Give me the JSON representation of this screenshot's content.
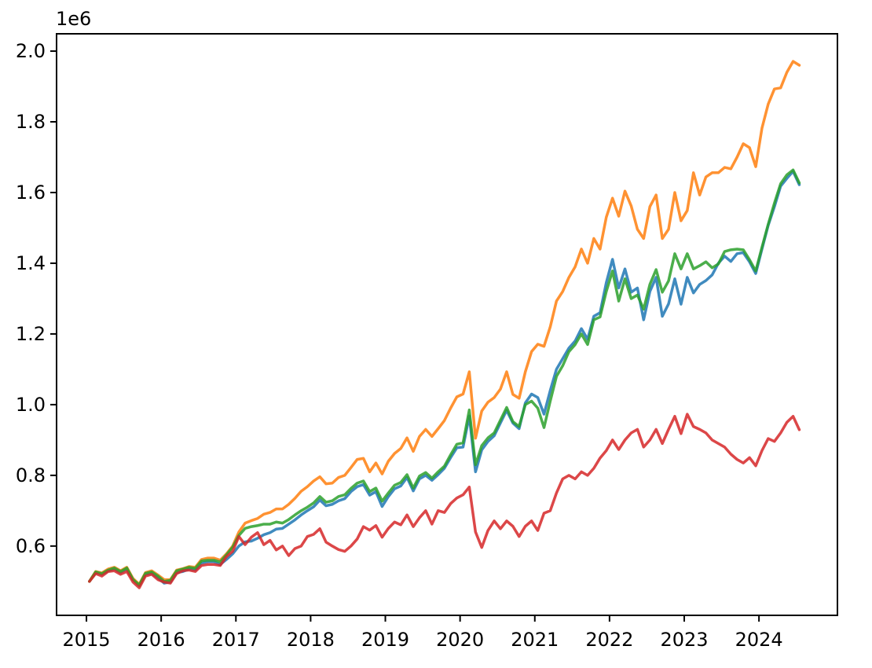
{
  "figure": {
    "background": "#ffffff"
  },
  "chart_data": {
    "type": "line",
    "title": "",
    "xlabel": "",
    "ylabel": "",
    "grid": false,
    "legend": null,
    "values_unit_multiplier": 1000000,
    "x_start_year": 2015.04,
    "x_step_years": 0.0833333,
    "x_axis": {
      "ticks": [
        2015,
        2016,
        2017,
        2018,
        2019,
        2020,
        2021,
        2022,
        2023,
        2024
      ],
      "tick_labels": [
        "2015",
        "2016",
        "2017",
        "2018",
        "2019",
        "2020",
        "2021",
        "2022",
        "2023",
        "2024"
      ],
      "lim": [
        2014.6,
        2025.05
      ]
    },
    "y_axis": {
      "ticks": [
        0.6,
        0.8,
        1.0,
        1.2,
        1.4,
        1.6,
        1.8,
        2.0
      ],
      "tick_labels": [
        "0.6",
        "0.8",
        "1.0",
        "1.2",
        "1.4",
        "1.6",
        "1.8",
        "2.0"
      ],
      "offset_text": "1e6",
      "lim": [
        0.404,
        2.049
      ]
    },
    "stroke_opacity": 0.85,
    "line_width": 3.5,
    "series": [
      {
        "name": "blue",
        "color": "#1f77b4",
        "values": [
          0.5,
          0.525,
          0.52,
          0.53,
          0.535,
          0.525,
          0.535,
          0.505,
          0.488,
          0.52,
          0.523,
          0.51,
          0.495,
          0.498,
          0.525,
          0.528,
          0.535,
          0.532,
          0.552,
          0.556,
          0.556,
          0.548,
          0.562,
          0.578,
          0.6,
          0.612,
          0.614,
          0.622,
          0.632,
          0.638,
          0.648,
          0.65,
          0.662,
          0.674,
          0.688,
          0.7,
          0.711,
          0.73,
          0.714,
          0.718,
          0.728,
          0.734,
          0.754,
          0.768,
          0.774,
          0.744,
          0.754,
          0.712,
          0.74,
          0.762,
          0.77,
          0.794,
          0.756,
          0.79,
          0.8,
          0.786,
          0.802,
          0.82,
          0.85,
          0.878,
          0.88,
          0.968,
          0.81,
          0.872,
          0.896,
          0.912,
          0.948,
          0.984,
          0.948,
          0.932,
          1.005,
          1.03,
          1.02,
          0.973,
          1.04,
          1.1,
          1.13,
          1.16,
          1.18,
          1.215,
          1.185,
          1.25,
          1.26,
          1.345,
          1.411,
          1.33,
          1.384,
          1.318,
          1.33,
          1.24,
          1.32,
          1.36,
          1.25,
          1.285,
          1.356,
          1.284,
          1.36,
          1.316,
          1.34,
          1.351,
          1.367,
          1.4,
          1.42,
          1.405,
          1.427,
          1.43,
          1.404,
          1.371,
          1.44,
          1.507,
          1.56,
          1.618,
          1.64,
          1.66,
          1.622
        ]
      },
      {
        "name": "orange",
        "color": "#ff7f0e",
        "values": [
          0.5,
          0.528,
          0.524,
          0.535,
          0.54,
          0.53,
          0.54,
          0.508,
          0.492,
          0.525,
          0.53,
          0.518,
          0.505,
          0.505,
          0.532,
          0.536,
          0.542,
          0.54,
          0.562,
          0.566,
          0.566,
          0.56,
          0.578,
          0.6,
          0.64,
          0.665,
          0.672,
          0.678,
          0.69,
          0.695,
          0.705,
          0.705,
          0.718,
          0.735,
          0.755,
          0.768,
          0.784,
          0.796,
          0.776,
          0.778,
          0.794,
          0.8,
          0.822,
          0.845,
          0.848,
          0.81,
          0.835,
          0.804,
          0.84,
          0.862,
          0.876,
          0.906,
          0.868,
          0.91,
          0.93,
          0.91,
          0.932,
          0.955,
          0.99,
          1.022,
          1.03,
          1.093,
          0.905,
          0.982,
          1.007,
          1.02,
          1.044,
          1.093,
          1.029,
          1.018,
          1.093,
          1.15,
          1.171,
          1.165,
          1.22,
          1.293,
          1.32,
          1.36,
          1.39,
          1.44,
          1.4,
          1.47,
          1.44,
          1.53,
          1.584,
          1.533,
          1.604,
          1.562,
          1.496,
          1.47,
          1.56,
          1.593,
          1.47,
          1.496,
          1.6,
          1.52,
          1.549,
          1.656,
          1.593,
          1.644,
          1.656,
          1.656,
          1.671,
          1.667,
          1.7,
          1.738,
          1.727,
          1.673,
          1.782,
          1.85,
          1.893,
          1.896,
          1.94,
          1.971,
          1.96
        ]
      },
      {
        "name": "green",
        "color": "#2ca02c",
        "values": [
          0.5,
          0.527,
          0.522,
          0.532,
          0.538,
          0.528,
          0.538,
          0.505,
          0.49,
          0.523,
          0.527,
          0.515,
          0.5,
          0.503,
          0.53,
          0.535,
          0.54,
          0.537,
          0.558,
          0.56,
          0.56,
          0.555,
          0.575,
          0.597,
          0.63,
          0.65,
          0.655,
          0.658,
          0.662,
          0.662,
          0.668,
          0.665,
          0.675,
          0.688,
          0.7,
          0.71,
          0.722,
          0.74,
          0.724,
          0.728,
          0.74,
          0.745,
          0.763,
          0.778,
          0.784,
          0.754,
          0.764,
          0.727,
          0.75,
          0.772,
          0.78,
          0.802,
          0.764,
          0.798,
          0.808,
          0.792,
          0.81,
          0.826,
          0.858,
          0.888,
          0.892,
          0.985,
          0.83,
          0.884,
          0.906,
          0.92,
          0.956,
          0.992,
          0.952,
          0.938,
          1.0,
          1.01,
          0.99,
          0.935,
          1.01,
          1.08,
          1.11,
          1.15,
          1.17,
          1.2,
          1.17,
          1.24,
          1.248,
          1.32,
          1.378,
          1.293,
          1.356,
          1.3,
          1.31,
          1.27,
          1.34,
          1.382,
          1.318,
          1.35,
          1.427,
          1.384,
          1.427,
          1.384,
          1.393,
          1.404,
          1.387,
          1.398,
          1.433,
          1.438,
          1.44,
          1.438,
          1.41,
          1.378,
          1.445,
          1.51,
          1.57,
          1.625,
          1.65,
          1.664,
          1.627
        ]
      },
      {
        "name": "red",
        "color": "#d62728",
        "values": [
          0.5,
          0.522,
          0.515,
          0.528,
          0.53,
          0.52,
          0.528,
          0.498,
          0.482,
          0.515,
          0.52,
          0.505,
          0.498,
          0.495,
          0.522,
          0.53,
          0.532,
          0.528,
          0.545,
          0.548,
          0.548,
          0.545,
          0.57,
          0.585,
          0.627,
          0.604,
          0.625,
          0.638,
          0.604,
          0.616,
          0.589,
          0.6,
          0.573,
          0.593,
          0.6,
          0.627,
          0.633,
          0.649,
          0.611,
          0.6,
          0.59,
          0.585,
          0.6,
          0.62,
          0.655,
          0.645,
          0.658,
          0.625,
          0.65,
          0.668,
          0.66,
          0.688,
          0.655,
          0.68,
          0.7,
          0.662,
          0.7,
          0.695,
          0.72,
          0.736,
          0.745,
          0.767,
          0.64,
          0.596,
          0.644,
          0.671,
          0.649,
          0.671,
          0.656,
          0.627,
          0.656,
          0.671,
          0.644,
          0.693,
          0.7,
          0.75,
          0.79,
          0.8,
          0.79,
          0.81,
          0.8,
          0.82,
          0.849,
          0.87,
          0.9,
          0.873,
          0.9,
          0.92,
          0.93,
          0.88,
          0.9,
          0.93,
          0.89,
          0.93,
          0.967,
          0.918,
          0.973,
          0.938,
          0.93,
          0.92,
          0.9,
          0.89,
          0.88,
          0.86,
          0.845,
          0.835,
          0.85,
          0.827,
          0.87,
          0.904,
          0.896,
          0.92,
          0.95,
          0.967,
          0.929
        ]
      }
    ]
  }
}
